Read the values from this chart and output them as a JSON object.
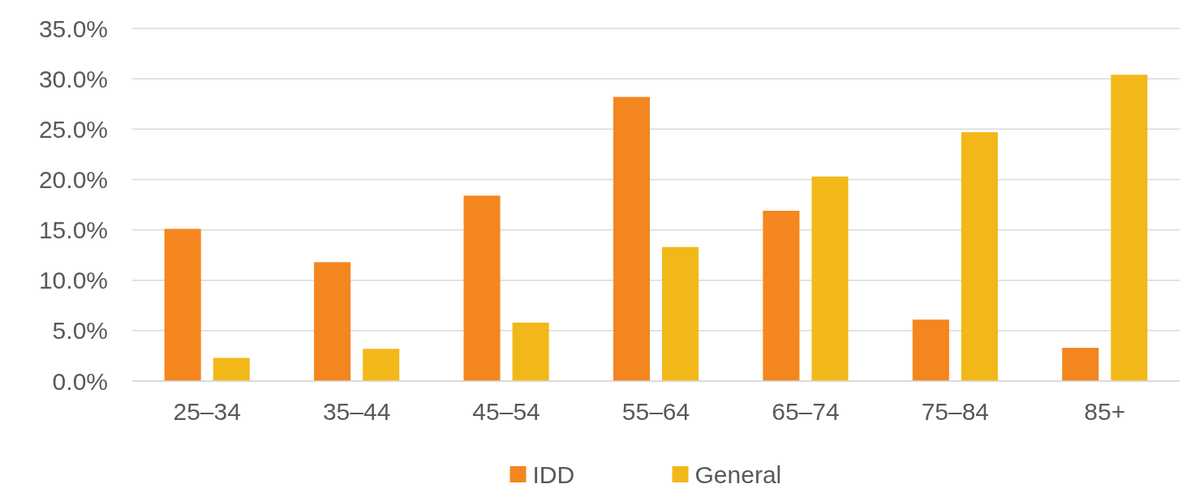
{
  "chart_data": {
    "type": "bar",
    "categories": [
      "25–34",
      "35–44",
      "45–54",
      "55–64",
      "65–74",
      "75–84",
      "85+"
    ],
    "series": [
      {
        "name": "IDD",
        "color": "#f4861f",
        "values": [
          15.1,
          11.8,
          18.4,
          28.2,
          16.9,
          6.1,
          3.3
        ]
      },
      {
        "name": "General",
        "color": "#f2b81a",
        "values": [
          2.3,
          3.2,
          5.8,
          13.3,
          20.3,
          24.7,
          30.4
        ]
      }
    ],
    "ylim": [
      0,
      35
    ],
    "yticks": [
      {
        "value": 0,
        "label": "0.0%"
      },
      {
        "value": 5,
        "label": "5.0%"
      },
      {
        "value": 10,
        "label": "10.0%"
      },
      {
        "value": 15,
        "label": "15.0%"
      },
      {
        "value": 20,
        "label": "20.0%"
      },
      {
        "value": 25,
        "label": "25.0%"
      },
      {
        "value": 30,
        "label": "30.0%"
      },
      {
        "value": 35,
        "label": "35.0%"
      }
    ],
    "grid": "y",
    "legend": "bottom"
  }
}
